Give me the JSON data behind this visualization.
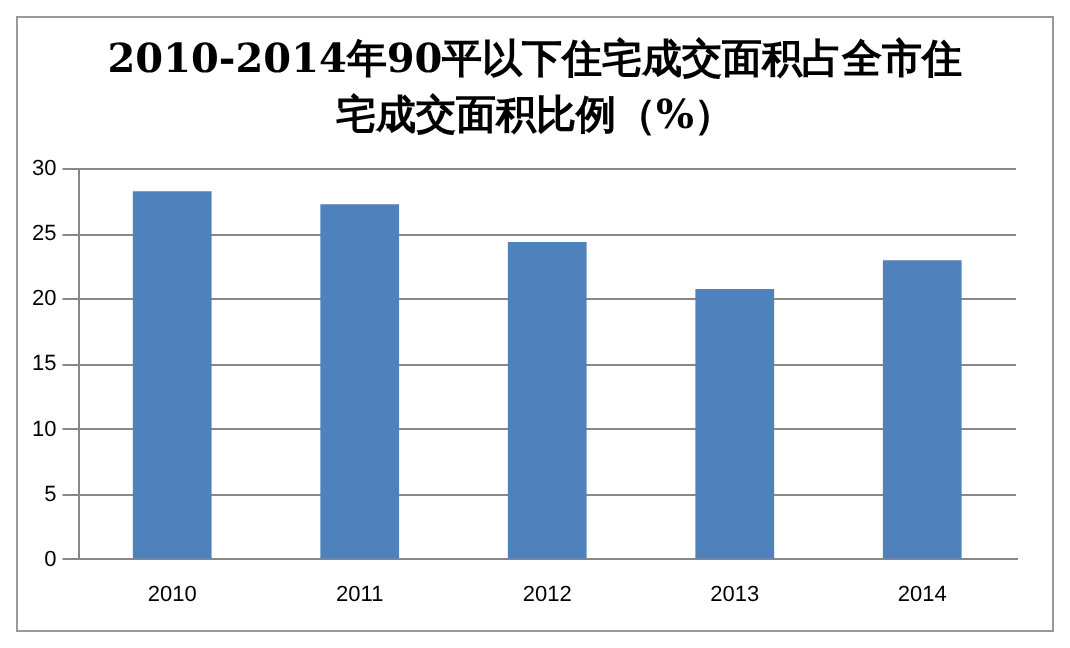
{
  "chart_data": {
    "type": "bar",
    "title": "2010-2014年90平以下住宅成交面积占全市住宅成交面积比例（%）",
    "categories": [
      "2010",
      "2011",
      "2012",
      "2013",
      "2014"
    ],
    "values": [
      28.3,
      27.3,
      24.4,
      20.8,
      23.0
    ],
    "color": "#4f81bd",
    "ylim": [
      0,
      30
    ],
    "yticks": [
      0,
      5,
      10,
      15,
      20,
      25,
      30
    ],
    "grid": "y"
  }
}
